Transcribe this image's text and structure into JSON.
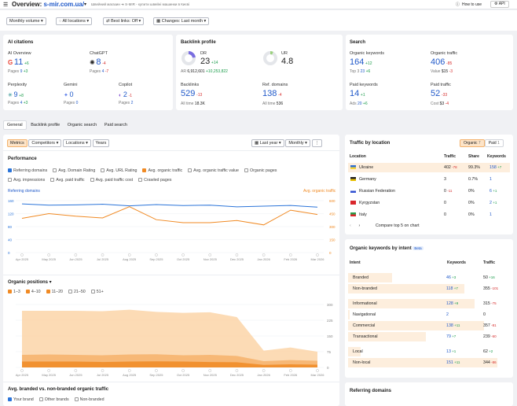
{
  "header": {
    "title": "Overview:",
    "domain": "s-mir.com.ua/",
    "subtitle": "Швейний магазин ➜ S-MIR - купити швейні машинки в Києві",
    "howto": "How to use",
    "api": "API"
  },
  "filters": {
    "volume": "Monthly volume",
    "locations": "All locations",
    "bestlinks": "Best links: Off",
    "changes": "Changes: Last month"
  },
  "ai": {
    "title": "AI citations",
    "overview_label": "AI Overview",
    "overview_value": "11",
    "overview_delta": "+6",
    "overview_pages": "Pages",
    "overview_pages_val": "9",
    "overview_pages_delta": "+3",
    "chatgpt_label": "ChatGPT",
    "chatgpt_value": "8",
    "chatgpt_delta": "-4",
    "chatgpt_pages": "Pages",
    "chatgpt_pages_val": "4",
    "chatgpt_pages_delta": "-7",
    "perplexity_label": "Perplexity",
    "perplexity_value": "9",
    "perplexity_delta": "+8",
    "perplexity_pages": "Pages",
    "perplexity_pages_val": "4",
    "perplexity_pages_delta": "+3",
    "gemini_label": "Gemini",
    "gemini_value": "0",
    "gemini_pages": "Pages",
    "gemini_pages_val": "0",
    "copilot_label": "Copilot",
    "copilot_value": "2",
    "copilot_delta": "-1",
    "copilot_pages": "Pages",
    "copilot_pages_val": "2"
  },
  "backlink": {
    "title": "Backlink profile",
    "dr_label": "DR",
    "dr_value": "23",
    "dr_delta": "+14",
    "ar_label": "AR",
    "ar_value": "6,912,601",
    "ar_delta": "+10,253,822",
    "ur_label": "UR",
    "ur_value": "4.8",
    "bl_label": "Backlinks",
    "bl_value": "529",
    "bl_delta": "-13",
    "bl_all_label": "All time",
    "bl_all": "18.3K",
    "rd_label": "Ref. domains",
    "rd_value": "138",
    "rd_delta": "-4",
    "rd_all_label": "All time",
    "rd_all": "536"
  },
  "search": {
    "title": "Search",
    "ok_label": "Organic keywords",
    "ok_value": "164",
    "ok_delta": "+12",
    "top3_label": "Top 3",
    "top3_val": "23",
    "top3_delta": "+6",
    "ot_label": "Organic traffic",
    "ot_value": "406",
    "ot_delta": "-85",
    "val_label": "Value",
    "val_val": "$15",
    "val_delta": "-3",
    "pk_label": "Paid keywords",
    "pk_value": "14",
    "pk_delta": "+1",
    "ads_label": "Ads",
    "ads_val": "20",
    "ads_delta": "+6",
    "pt_label": "Paid traffic",
    "pt_value": "52",
    "pt_delta": "-33",
    "cost_label": "Cost",
    "cost_val": "$3",
    "cost_delta": "-4"
  },
  "tabs": [
    "General",
    "Backlink profile",
    "Organic search",
    "Paid search"
  ],
  "metrics_bar": {
    "metrics": "Metrics",
    "competitors": "Competitors",
    "locations": "Locations",
    "years": "Years",
    "period": "Last year",
    "interval": "Monthly"
  },
  "performance": {
    "title": "Performance",
    "checks": [
      {
        "label": "Referring domains",
        "on": "blue"
      },
      {
        "label": "Avg. Domain Rating",
        "on": ""
      },
      {
        "label": "Avg. URL Rating",
        "on": ""
      },
      {
        "label": "Avg. organic traffic",
        "on": "orange"
      },
      {
        "label": "Avg. organic traffic value",
        "on": ""
      },
      {
        "label": "Organic pages",
        "on": ""
      },
      {
        "label": "Avg. impressions",
        "on": ""
      },
      {
        "label": "Avg. paid traffic",
        "on": ""
      },
      {
        "label": "Avg. paid traffic cost",
        "on": ""
      },
      {
        "label": "Crawled pages",
        "on": ""
      }
    ],
    "left_axis_title": "Referring domains",
    "right_axis_title": "Avg. organic traffic"
  },
  "positions": {
    "title": "Organic positions",
    "checks": [
      {
        "label": "1–3",
        "on": "yes"
      },
      {
        "label": "4–10",
        "on": "yes"
      },
      {
        "label": "11–20",
        "on": "yes"
      },
      {
        "label": "21–50",
        "on": ""
      },
      {
        "label": "51+",
        "on": ""
      }
    ]
  },
  "branded": {
    "title": "Avg. branded vs. non-branded organic traffic",
    "checks": [
      {
        "label": "Your brand",
        "on": "blue"
      },
      {
        "label": "Other brands",
        "on": ""
      },
      {
        "label": "Non-branded",
        "on": ""
      }
    ]
  },
  "chart_data": [
    {
      "type": "line",
      "title": "Performance",
      "x": [
        "Apr 2025",
        "May 2025",
        "Jun 2025",
        "Jul 2025",
        "Aug 2025",
        "Sep 2025",
        "Oct 2025",
        "Nov 2025",
        "Dec 2025",
        "Jan 2026",
        "Feb 2026",
        "Mar 2026"
      ],
      "yticks_left": [
        "160",
        "120",
        "80",
        "40",
        "0"
      ],
      "yticks_right": [
        "600",
        "450",
        "300",
        "150",
        "0"
      ],
      "series": [
        {
          "name": "Referring domains",
          "color": "#2b74d9",
          "axis": "left",
          "values": [
            150,
            146,
            147,
            149,
            144,
            148,
            145,
            146,
            141,
            143,
            145,
            140
          ]
        },
        {
          "name": "Avg. organic traffic",
          "color": "#f08a24",
          "axis": "right",
          "values": [
            395,
            450,
            420,
            400,
            530,
            380,
            345,
            345,
            370,
            320,
            490,
            440
          ]
        }
      ]
    },
    {
      "type": "area",
      "title": "Organic positions",
      "x": [
        "Apr 2025",
        "May 2025",
        "Jun 2025",
        "Jul 2025",
        "Aug 2025",
        "Sep 2025",
        "Oct 2025",
        "Nov 2025",
        "Dec 2025",
        "Jan 2026",
        "Feb 2026",
        "Mar 2026"
      ],
      "yticks": [
        "300",
        "225",
        "150",
        "75",
        "0"
      ],
      "series": [
        {
          "name": "11–20",
          "color": "#fbd5a8",
          "values": [
            270,
            270,
            270,
            268,
            275,
            265,
            260,
            263,
            240,
            80,
            95,
            75
          ]
        },
        {
          "name": "4–10",
          "color": "#f6b26b",
          "values": [
            60,
            62,
            60,
            58,
            62,
            63,
            58,
            60,
            55,
            30,
            35,
            32
          ]
        },
        {
          "name": "1–3",
          "color": "#f08a24",
          "values": [
            28,
            28,
            28,
            26,
            28,
            29,
            28,
            26,
            25,
            12,
            15,
            13
          ]
        }
      ]
    }
  ],
  "traffic_location": {
    "title": "Traffic by location",
    "organic": "Organic",
    "organic_badge": "7",
    "paid": "Paid",
    "paid_badge": "1",
    "cols": [
      "Location",
      "Traffic",
      "Share",
      "Keywords"
    ],
    "rows": [
      {
        "flag": "ua",
        "name": "Ukraine",
        "traffic": "402",
        "traffic_d": "-78",
        "share": "99.3%",
        "kw": "158",
        "kw_d": "+7"
      },
      {
        "flag": "de",
        "name": "Germany",
        "traffic": "3",
        "traffic_d": "",
        "share": "0.7%",
        "kw": "1",
        "kw_d": ""
      },
      {
        "flag": "ru",
        "name": "Russian Federation",
        "traffic": "0",
        "traffic_d": "-11",
        "share": "0%",
        "kw": "6",
        "kw_d": "+1"
      },
      {
        "flag": "kg",
        "name": "Kyrgyzstan",
        "traffic": "0",
        "traffic_d": "",
        "share": "0%",
        "kw": "2",
        "kw_d": "+1"
      },
      {
        "flag": "it",
        "name": "Italy",
        "traffic": "0",
        "traffic_d": "",
        "share": "0%",
        "kw": "1",
        "kw_d": ""
      }
    ],
    "compare": "Compare top 5 on chart"
  },
  "intent": {
    "title": "Organic keywords by intent",
    "beta": "Beta",
    "cols": [
      "Intent",
      "Keywords",
      "Traffic"
    ],
    "rows": [
      {
        "name": "Branded",
        "kw": "46",
        "kw_d": "+3",
        "tr": "50",
        "tr_d": "+16",
        "kw_bar": 0.27,
        "tr_bar": 0.12
      },
      {
        "name": "Non-branded",
        "kw": "118",
        "kw_d": "+7",
        "tr": "355",
        "tr_d": "-101",
        "kw_bar": 0.72,
        "tr_bar": 0.88
      },
      {
        "name": "Informational",
        "kw": "128",
        "kw_d": "+9",
        "tr": "315",
        "tr_d": "-75",
        "kw_bar": 0.78,
        "tr_bar": 0.78
      },
      {
        "name": "Navigational",
        "kw": "2",
        "kw_d": "",
        "tr": "0",
        "tr_d": "",
        "kw_bar": 0.01,
        "tr_bar": 0
      },
      {
        "name": "Commercial",
        "kw": "138",
        "kw_d": "+11",
        "tr": "357",
        "tr_d": "-81",
        "kw_bar": 0.84,
        "tr_bar": 0.88
      },
      {
        "name": "Transactional",
        "kw": "79",
        "kw_d": "+7",
        "tr": "239",
        "tr_d": "-60",
        "kw_bar": 0.48,
        "tr_bar": 0.59
      },
      {
        "name": "Local",
        "kw": "13",
        "kw_d": "+1",
        "tr": "62",
        "tr_d": "+2",
        "kw_bar": 0.08,
        "tr_bar": 0.15
      },
      {
        "name": "Non-local",
        "kw": "151",
        "kw_d": "+11",
        "tr": "344",
        "tr_d": "-86",
        "kw_bar": 0.92,
        "tr_bar": 0.85
      }
    ]
  },
  "refdomains": {
    "title": "Referring domains"
  },
  "colors": {
    "blue": "#2b74d9",
    "orange": "#f08a24",
    "green": "#1a9c4a",
    "red": "#d62d2d"
  }
}
